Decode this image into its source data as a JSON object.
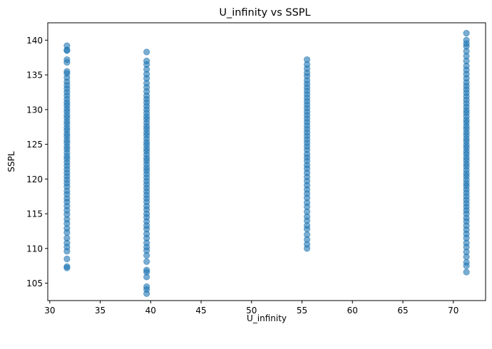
{
  "chart_data": {
    "type": "scatter",
    "title": "U_infinity vs SSPL",
    "xlabel": "U_infinity",
    "ylabel": "SSPL",
    "xlim": [
      29.8,
      73.2
    ],
    "ylim": [
      102.5,
      142.5
    ],
    "xticks": [
      30,
      35,
      40,
      45,
      50,
      55,
      60,
      65,
      70
    ],
    "yticks": [
      105,
      110,
      115,
      120,
      125,
      130,
      135,
      140
    ],
    "grid": false,
    "point_color": "#1f77b4",
    "point_alpha": 0.6,
    "series": [
      {
        "x": 31.7,
        "y": [
          107.2,
          107.4,
          108.5,
          109.6,
          110.2,
          110.8,
          111.5,
          112.3,
          112.9,
          113.6,
          114.2,
          114.9,
          115.5,
          116.1,
          116.7,
          117.2,
          117.8,
          118.3,
          118.9,
          119.4,
          119.9,
          120.4,
          120.9,
          121.4,
          121.9,
          122.4,
          122.9,
          123.3,
          123.8,
          124.3,
          124.7,
          125.2,
          125.6,
          126.1,
          126.5,
          127.0,
          127.4,
          127.9,
          128.3,
          128.8,
          129.2,
          129.7,
          130.1,
          130.6,
          131.0,
          131.5,
          132.0,
          132.5,
          133.0,
          133.5,
          134.0,
          134.6,
          135.2,
          135.5,
          136.8,
          137.2,
          138.5,
          138.6,
          139.2
        ]
      },
      {
        "x": 39.6,
        "y": [
          103.5,
          104.1,
          104.5,
          105.9,
          106.6,
          106.9,
          108.1,
          109.0,
          109.7,
          110.2,
          110.8,
          111.5,
          112.1,
          112.8,
          113.3,
          113.9,
          114.5,
          115.0,
          115.6,
          116.1,
          116.7,
          117.2,
          117.7,
          118.2,
          118.7,
          119.2,
          119.7,
          120.2,
          120.7,
          121.2,
          121.6,
          122.1,
          122.6,
          123.0,
          123.5,
          124.0,
          124.4,
          124.9,
          125.3,
          125.8,
          126.3,
          126.7,
          127.2,
          127.6,
          128.1,
          128.6,
          129.0,
          129.5,
          130.0,
          130.5,
          131.0,
          131.5,
          132.0,
          132.6,
          133.2,
          133.8,
          134.5,
          135.1,
          135.8,
          136.5,
          137.0,
          138.3
        ]
      },
      {
        "x": 55.5,
        "y": [
          110.0,
          110.6,
          111.3,
          112.0,
          112.8,
          113.3,
          114.0,
          114.6,
          115.3,
          116.0,
          116.6,
          117.3,
          117.9,
          118.5,
          119.1,
          119.7,
          120.3,
          120.9,
          121.5,
          122.0,
          122.6,
          123.1,
          123.6,
          124.2,
          124.7,
          125.2,
          125.7,
          126.2,
          126.7,
          127.2,
          127.7,
          128.2,
          128.7,
          129.2,
          129.7,
          130.2,
          130.7,
          131.2,
          131.7,
          132.2,
          132.7,
          133.2,
          133.7,
          134.2,
          134.8,
          135.3,
          135.9,
          136.5,
          137.2
        ]
      },
      {
        "x": 71.3,
        "y": [
          106.6,
          107.5,
          108.0,
          108.8,
          109.5,
          110.2,
          110.8,
          111.5,
          112.1,
          112.7,
          113.3,
          113.9,
          114.4,
          115.0,
          115.5,
          116.0,
          116.5,
          117.0,
          117.5,
          118.0,
          118.5,
          119.0,
          119.4,
          119.9,
          120.4,
          120.8,
          121.3,
          121.8,
          122.2,
          122.7,
          123.1,
          123.6,
          124.0,
          124.5,
          124.9,
          125.4,
          125.8,
          126.3,
          126.7,
          127.2,
          127.6,
          128.1,
          128.5,
          129.0,
          129.5,
          129.9,
          130.4,
          130.9,
          131.4,
          131.9,
          132.4,
          132.9,
          133.4,
          133.9,
          134.5,
          135.1,
          135.7,
          136.3,
          137.0,
          137.7,
          138.4,
          139.1,
          139.5,
          140.0,
          141.0
        ]
      }
    ]
  }
}
